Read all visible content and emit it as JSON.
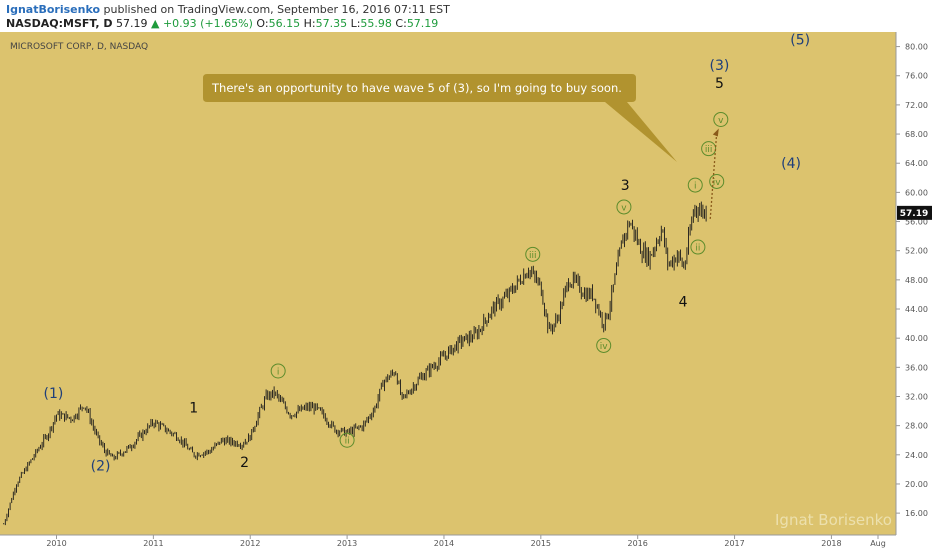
{
  "header": {
    "author": "IgnatBorisenko",
    "published_text": "published on TradingView.com, September 16, 2016 07:11 EST",
    "symbol": "NASDAQ:MSFT, D",
    "last": "57.19",
    "change": "+0.93 (+1.65%)",
    "o_label": "O:",
    "o_value": "56.15",
    "h_label": "H:",
    "h_value": "57.35",
    "l_label": "L:",
    "l_value": "55.98",
    "c_label": "C:",
    "c_value": "57.19"
  },
  "chart": {
    "legend_title": "MICROSOFT CORP, D, NASDAQ",
    "callout_text": "There's an opportunity to have wave 5 of (3), so I'm going to buy soon.",
    "watermark": "Ignat Borisenko",
    "last_price_tag": "57.19",
    "colors": {
      "background": "#dcc36e",
      "axis_bg": "#ffffff",
      "candle": "#1a1a1a",
      "callout": "#b1932f",
      "blue_label": "#1f3f7a",
      "black_label": "#111111",
      "green_label": "#5d8c2c",
      "dotted": "#8a5a1a"
    }
  },
  "chart_data": {
    "type": "line",
    "title": "MICROSOFT CORP, D, NASDAQ",
    "x_axis": {
      "type": "date",
      "ticks": [
        "2010",
        "2011",
        "2012",
        "2013",
        "2014",
        "2015",
        "2016",
        "2017",
        "2018",
        "Aug"
      ],
      "range": [
        "2009-06",
        "2018-09"
      ]
    },
    "y_axis": {
      "ticks": [
        16,
        20,
        24,
        28,
        32,
        36,
        40,
        44,
        48,
        52,
        56,
        60,
        64,
        68,
        72,
        76,
        80
      ],
      "ylim": [
        13.0,
        82.0
      ],
      "position": "right"
    },
    "grid": false,
    "series": [
      {
        "x": [
          "2009-06-15",
          "2009-08-01",
          "2009-10-01",
          "2009-12-01",
          "2010-01-01",
          "2010-03-01",
          "2010-04-15",
          "2010-06-01",
          "2010-07-01",
          "2010-08-01",
          "2010-10-01",
          "2011-01-01",
          "2011-04-01",
          "2011-06-01",
          "2011-08-01",
          "2011-09-15",
          "2011-12-01",
          "2012-01-01",
          "2012-02-01",
          "2012-03-01",
          "2012-04-01",
          "2012-06-01",
          "2012-08-01",
          "2012-09-01",
          "2012-10-01",
          "2012-11-15",
          "2013-01-01",
          "2013-03-01",
          "2013-04-15",
          "2013-05-15",
          "2013-07-01",
          "2013-07-25",
          "2013-10-01",
          "2014-01-01",
          "2014-03-01",
          "2014-05-01",
          "2014-07-01",
          "2014-09-01",
          "2014-11-15",
          "2015-01-01",
          "2015-01-31",
          "2015-03-01",
          "2015-04-15",
          "2015-05-15",
          "2015-06-15",
          "2015-07-15",
          "2015-08-24",
          "2015-09-15",
          "2015-11-01",
          "2015-12-01",
          "2016-01-15",
          "2016-02-15",
          "2016-04-01",
          "2016-04-25",
          "2016-06-01",
          "2016-06-24",
          "2016-07-01",
          "2016-08-01",
          "2016-09-16"
        ],
        "y": [
          14.5,
          20.0,
          23.5,
          27.0,
          29.5,
          29.0,
          31.0,
          26.5,
          24.5,
          23.5,
          25.0,
          28.5,
          26.5,
          24.0,
          24.5,
          26.0,
          25.5,
          26.5,
          29.5,
          32.0,
          32.5,
          29.5,
          30.5,
          30.5,
          29.5,
          27.5,
          27.0,
          28.0,
          30.5,
          34.0,
          35.5,
          31.5,
          34.5,
          37.5,
          39.5,
          40.5,
          44.0,
          46.0,
          49.5,
          47.0,
          41.0,
          42.5,
          48.0,
          47.5,
          46.0,
          46.0,
          42.0,
          44.0,
          53.0,
          56.0,
          52.0,
          51.0,
          55.0,
          50.0,
          51.5,
          49.5,
          51.5,
          58.0,
          57.19
        ]
      }
    ],
    "annotations": [
      {
        "text": "(1)",
        "x": "2009-12-20",
        "y": 32.5,
        "style": "blue"
      },
      {
        "text": "(2)",
        "x": "2010-06-15",
        "y": 22.5,
        "style": "blue"
      },
      {
        "text": "1",
        "x": "2011-06-01",
        "y": 30.5,
        "style": "black"
      },
      {
        "text": "2",
        "x": "2011-12-10",
        "y": 23.0,
        "style": "black"
      },
      {
        "text": "i",
        "x": "2012-04-15",
        "y": 35.5,
        "style": "green"
      },
      {
        "text": "ii",
        "x": "2013-01-01",
        "y": 26.0,
        "style": "green"
      },
      {
        "text": "iii",
        "x": "2014-12-01",
        "y": 51.5,
        "style": "green"
      },
      {
        "text": "iv",
        "x": "2015-08-25",
        "y": 39.0,
        "style": "green"
      },
      {
        "text": "v",
        "x": "2015-11-10",
        "y": 58.0,
        "style": "green"
      },
      {
        "text": "3",
        "x": "2015-11-15",
        "y": 61.0,
        "style": "black"
      },
      {
        "text": "4",
        "x": "2016-06-20",
        "y": 45.0,
        "style": "black"
      },
      {
        "text": "i",
        "x": "2016-08-05",
        "y": 61.0,
        "style": "green"
      },
      {
        "text": "ii",
        "x": "2016-08-15",
        "y": 52.5,
        "style": "green"
      },
      {
        "text": "iii",
        "x": "2016-09-25",
        "y": 66.0,
        "style": "green"
      },
      {
        "text": "iv",
        "x": "2016-10-25",
        "y": 61.5,
        "style": "green"
      },
      {
        "text": "v",
        "x": "2016-11-10",
        "y": 70.0,
        "style": "green"
      },
      {
        "text": "5",
        "x": "2016-11-05",
        "y": 75.0,
        "style": "black"
      },
      {
        "text": "(3)",
        "x": "2016-11-05",
        "y": 77.5,
        "style": "blue"
      },
      {
        "text": "(4)",
        "x": "2017-08-01",
        "y": 64.0,
        "style": "blue"
      },
      {
        "text": "(5)",
        "x": "2017-09-05",
        "y": 81.0,
        "style": "blue"
      }
    ]
  }
}
